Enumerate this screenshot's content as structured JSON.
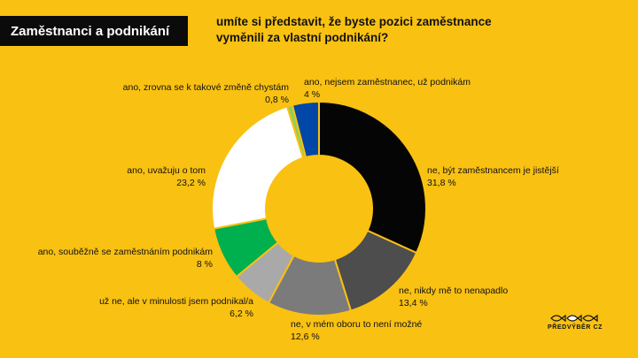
{
  "header": {
    "title": "Zaměstnanci a podnikání",
    "question_line1": "umíte si představit, že byste pozici zaměstnance",
    "question_line2": "vyměnili za vlastní podnikání?"
  },
  "logo": {
    "text": "PŘEDVÝBĚR CZ"
  },
  "colors": {
    "background": "#F9C112",
    "title_bg": "#0b0b0b"
  },
  "chart_data": {
    "type": "pie",
    "variant": "donut",
    "title": "umíte si představit, že byste pozici zaměstnance vyměnili za vlastní podnikání?",
    "start": "top, clockwise",
    "slices": [
      {
        "label": "ne, být zaměstnancem je jistější",
        "value": 31.8,
        "value_label": "31,8 %",
        "color": "#050505"
      },
      {
        "label": "ne, nikdy mě to nenapadlo",
        "value": 13.4,
        "value_label": "13,4 %",
        "color": "#4d4d4d"
      },
      {
        "label": "ne, v mém oboru to není možné",
        "value": 12.6,
        "value_label": "12,6 %",
        "color": "#7b7b7b"
      },
      {
        "label": "už ne, ale v minulosti jsem podnikal/a",
        "value": 6.2,
        "value_label": "6,2 %",
        "color": "#a9a9a9"
      },
      {
        "label": "ano, souběžně se zaměstnáním podnikám",
        "value": 8,
        "value_label": "8 %",
        "color": "#00b04f"
      },
      {
        "label": "ano, uvažuju o tom",
        "value": 23.2,
        "value_label": "23,2 %",
        "color": "#ffffff"
      },
      {
        "label": "ano, zrovna se k takové změně chystám",
        "value": 0.8,
        "value_label": "0,8 %",
        "color": "#8ecf5b"
      },
      {
        "label": "ano, nejsem zaměstnanec, už podnikám",
        "value": 4,
        "value_label": "4 %",
        "color": "#0047a8"
      }
    ]
  }
}
